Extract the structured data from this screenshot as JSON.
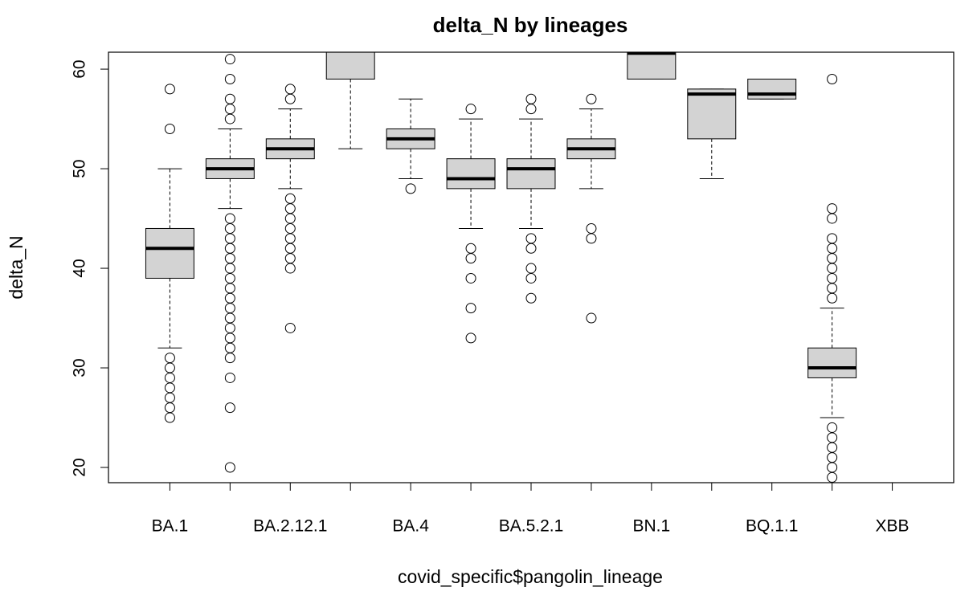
{
  "chart_data": {
    "type": "boxplot",
    "title": "delta_N by lineages",
    "x_label": "covid_specific$pangolin_lineage",
    "y_label": "delta_N",
    "categories": [
      "BA.1",
      null,
      "BA.2.12.1",
      null,
      "BA.4",
      null,
      "BA.5.2.1",
      null,
      "BN.1",
      null,
      "BQ.1.1",
      null,
      "XBB"
    ],
    "min": [
      32,
      46,
      48,
      52,
      49,
      44,
      44,
      48,
      59,
      49,
      57,
      25,
      null
    ],
    "q1": [
      39,
      49,
      51,
      59,
      52,
      48,
      48,
      51,
      59,
      53,
      57,
      29,
      null
    ],
    "median": [
      42,
      50,
      52,
      62,
      53,
      49,
      50,
      52,
      61.6,
      57.5,
      57.5,
      30,
      null
    ],
    "q3": [
      44,
      51,
      53,
      63,
      54,
      51,
      51,
      53,
      62.5,
      58,
      59,
      32,
      null
    ],
    "max": [
      50,
      54,
      56,
      64,
      57,
      55,
      55,
      56,
      63,
      58,
      59,
      36,
      null
    ],
    "outliers": [
      [
        58,
        54,
        31,
        30,
        29,
        28,
        27,
        26,
        25
      ],
      [
        61,
        59,
        57,
        56,
        55,
        45,
        44,
        43,
        42,
        41,
        40,
        39,
        38,
        37,
        36,
        35,
        34,
        33,
        32,
        31,
        29,
        26,
        20
      ],
      [
        58,
        57,
        47,
        46,
        45,
        44,
        43,
        42,
        41,
        40,
        34
      ],
      [],
      [
        48
      ],
      [
        56,
        42,
        41,
        39,
        36,
        33
      ],
      [
        57,
        56,
        43,
        42,
        40,
        39,
        37
      ],
      [
        57,
        44,
        43,
        35
      ],
      [],
      [],
      [],
      [
        59,
        46,
        45,
        43,
        42,
        41,
        40,
        39,
        38,
        37,
        24,
        23,
        22,
        21,
        20,
        19
      ],
      []
    ],
    "box_color": "#d3d3d3",
    "ylim": [
      18.47,
      61.7
    ],
    "yticks": [
      20,
      30,
      40,
      50,
      60
    ]
  }
}
